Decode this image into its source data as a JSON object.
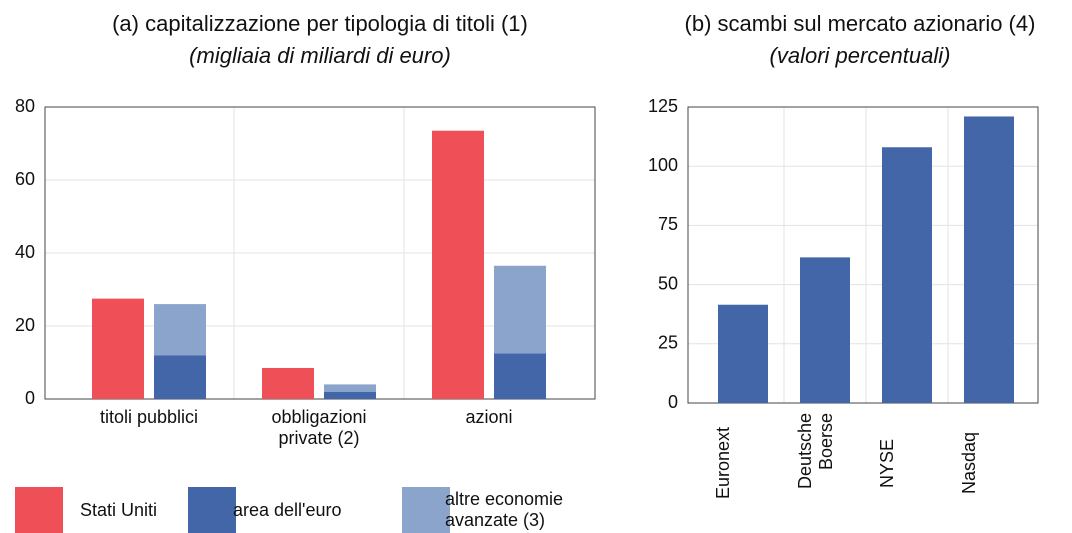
{
  "chart_data": [
    {
      "type": "bar",
      "title": "(a) capitalizzazione per tipologia di titoli (1)",
      "subtitle": "(migliaia di miliardi di euro)",
      "categories": [
        "titoli pubblici",
        "obbligazioni private (2)",
        "azioni"
      ],
      "series": [
        {
          "name": "Stati Uniti",
          "color": "#ef4f57",
          "values": [
            27.5,
            8.5,
            73.5
          ]
        },
        {
          "name": "area dell'euro",
          "color": "#4266a8",
          "values": [
            12,
            2,
            12.5
          ]
        },
        {
          "name": "altre economie avanzate (3)",
          "color": "#8aa4cc",
          "values": [
            14,
            2,
            24
          ],
          "stacked": true
        }
      ],
      "ylim": [
        0,
        80
      ],
      "yticks": [
        0,
        20,
        40,
        60,
        80
      ],
      "grid": true
    },
    {
      "type": "bar",
      "title": "(b) scambi sul mercato azionario (4)",
      "subtitle": "(valori percentuali)",
      "categories": [
        "Euronext",
        "Deutsche Boerse",
        "NYSE",
        "Nasdaq"
      ],
      "values": [
        41.5,
        61.5,
        108,
        121
      ],
      "color": "#4266a8",
      "ylim": [
        0,
        125
      ],
      "yticks": [
        0,
        25,
        50,
        75,
        100,
        125
      ],
      "grid": true
    }
  ]
}
